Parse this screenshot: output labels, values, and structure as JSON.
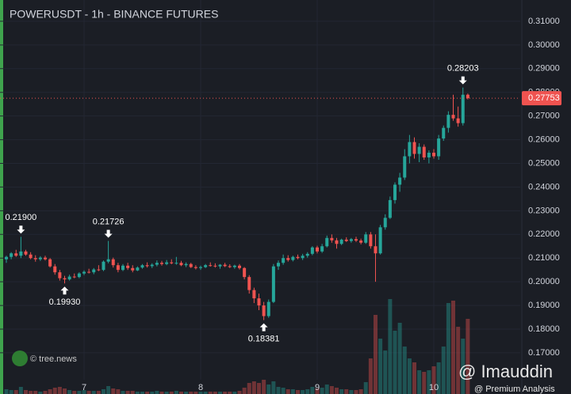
{
  "chart_data": {
    "type": "candlestick",
    "title": "POWERUSDT - 1h - BINANCE FUTURES",
    "up_color": "#26a69a",
    "down_color": "#ef5350",
    "categories": [
      null,
      null,
      null,
      null,
      null,
      null,
      null,
      null,
      null,
      null,
      null,
      null,
      null,
      null,
      null,
      null,
      "7",
      null,
      null,
      null,
      null,
      null,
      null,
      null,
      null,
      null,
      null,
      null,
      null,
      null,
      null,
      null,
      null,
      null,
      null,
      null,
      null,
      null,
      null,
      null,
      "8",
      null,
      null,
      null,
      null,
      null,
      null,
      null,
      null,
      null,
      null,
      null,
      null,
      null,
      null,
      null,
      null,
      null,
      null,
      null,
      null,
      null,
      null,
      null,
      "9",
      null,
      null,
      null,
      null,
      null,
      null,
      null,
      null,
      null,
      null,
      null,
      null,
      null,
      null,
      null,
      null,
      null,
      null,
      null,
      null,
      null,
      null,
      null,
      "10",
      null,
      null,
      null,
      null,
      null,
      null,
      null
    ],
    "candles": [
      [
        0.2095,
        0.211,
        0.208,
        0.2105
      ],
      [
        0.2105,
        0.2125,
        0.2095,
        0.212
      ],
      [
        0.212,
        0.2135,
        0.2105,
        0.211
      ],
      [
        0.211,
        0.219,
        0.21,
        0.2128
      ],
      [
        0.2128,
        0.2135,
        0.211,
        0.2115
      ],
      [
        0.2115,
        0.2125,
        0.2095,
        0.21
      ],
      [
        0.21,
        0.2112,
        0.2085,
        0.2095
      ],
      [
        0.2095,
        0.2108,
        0.2088,
        0.2102
      ],
      [
        0.2102,
        0.211,
        0.209,
        0.2095
      ],
      [
        0.2095,
        0.21,
        0.206,
        0.2065
      ],
      [
        0.2065,
        0.2075,
        0.203,
        0.204
      ],
      [
        0.204,
        0.205,
        0.2005,
        0.2015
      ],
      [
        0.2015,
        0.2025,
        0.1993,
        0.201
      ],
      [
        0.201,
        0.203,
        0.2005,
        0.2022
      ],
      [
        0.2022,
        0.2035,
        0.2015,
        0.202
      ],
      [
        0.202,
        0.204,
        0.2015,
        0.2035
      ],
      [
        0.2035,
        0.2048,
        0.2028,
        0.2042
      ],
      [
        0.2042,
        0.2055,
        0.2035,
        0.204
      ],
      [
        0.204,
        0.2058,
        0.2032,
        0.2052
      ],
      [
        0.2052,
        0.207,
        0.2045,
        0.205
      ],
      [
        0.205,
        0.209,
        0.2045,
        0.2085
      ],
      [
        0.2085,
        0.21726,
        0.2078,
        0.2095
      ],
      [
        0.2095,
        0.2102,
        0.206,
        0.207
      ],
      [
        0.207,
        0.208,
        0.204,
        0.205
      ],
      [
        0.205,
        0.2075,
        0.2045,
        0.2068
      ],
      [
        0.2068,
        0.208,
        0.205,
        0.2058
      ],
      [
        0.2058,
        0.207,
        0.204,
        0.2048
      ],
      [
        0.2048,
        0.2065,
        0.2045,
        0.206
      ],
      [
        0.206,
        0.2075,
        0.2055,
        0.207
      ],
      [
        0.207,
        0.2082,
        0.206,
        0.2066
      ],
      [
        0.2066,
        0.2078,
        0.2058,
        0.2072
      ],
      [
        0.2072,
        0.209,
        0.2065,
        0.208
      ],
      [
        0.208,
        0.2088,
        0.2068,
        0.2075
      ],
      [
        0.2075,
        0.2092,
        0.207,
        0.2082
      ],
      [
        0.2082,
        0.2095,
        0.2074,
        0.2078
      ],
      [
        0.2078,
        0.2105,
        0.2072,
        0.208
      ],
      [
        0.208,
        0.2088,
        0.2066,
        0.207
      ],
      [
        0.207,
        0.2082,
        0.2062,
        0.2075
      ],
      [
        0.2075,
        0.208,
        0.2058,
        0.2062
      ],
      [
        0.2062,
        0.207,
        0.2052,
        0.2058
      ],
      [
        0.2058,
        0.2068,
        0.205,
        0.2062
      ],
      [
        0.2062,
        0.2075,
        0.2058,
        0.207
      ],
      [
        0.207,
        0.2082,
        0.2064,
        0.2068
      ],
      [
        0.2068,
        0.2078,
        0.206,
        0.2065
      ],
      [
        0.2065,
        0.2075,
        0.2055,
        0.2072
      ],
      [
        0.2072,
        0.208,
        0.2062,
        0.2066
      ],
      [
        0.2066,
        0.2074,
        0.2058,
        0.2062
      ],
      [
        0.2062,
        0.2072,
        0.2055,
        0.2068
      ],
      [
        0.2068,
        0.2075,
        0.2052,
        0.2058
      ],
      [
        0.2058,
        0.2062,
        0.201,
        0.202
      ],
      [
        0.202,
        0.2028,
        0.195,
        0.1965
      ],
      [
        0.1965,
        0.1975,
        0.191,
        0.193
      ],
      [
        0.193,
        0.195,
        0.188,
        0.19
      ],
      [
        0.19,
        0.1915,
        0.18381,
        0.1855
      ],
      [
        0.1855,
        0.1925,
        0.1848,
        0.1915
      ],
      [
        0.1915,
        0.2075,
        0.191,
        0.2065
      ],
      [
        0.2065,
        0.209,
        0.205,
        0.208
      ],
      [
        0.208,
        0.2115,
        0.2072,
        0.21
      ],
      [
        0.21,
        0.2112,
        0.2085,
        0.2092
      ],
      [
        0.2092,
        0.211,
        0.2086,
        0.2105
      ],
      [
        0.2105,
        0.2115,
        0.2095,
        0.21
      ],
      [
        0.21,
        0.2118,
        0.2092,
        0.211
      ],
      [
        0.211,
        0.2125,
        0.2102,
        0.2118
      ],
      [
        0.2118,
        0.215,
        0.2112,
        0.2145
      ],
      [
        0.2145,
        0.2152,
        0.212,
        0.2128
      ],
      [
        0.2128,
        0.216,
        0.2122,
        0.215
      ],
      [
        0.215,
        0.2195,
        0.2145,
        0.2185
      ],
      [
        0.2185,
        0.22,
        0.2165,
        0.2175
      ],
      [
        0.2175,
        0.2185,
        0.214,
        0.216
      ],
      [
        0.216,
        0.2182,
        0.2155,
        0.2178
      ],
      [
        0.2178,
        0.2188,
        0.2168,
        0.2172
      ],
      [
        0.2172,
        0.2185,
        0.2165,
        0.218
      ],
      [
        0.218,
        0.219,
        0.2168,
        0.2174
      ],
      [
        0.2174,
        0.2182,
        0.2158,
        0.2165
      ],
      [
        0.2165,
        0.221,
        0.216,
        0.22
      ],
      [
        0.22,
        0.221,
        0.214,
        0.215
      ],
      [
        0.215,
        0.22,
        0.2,
        0.212
      ],
      [
        0.212,
        0.224,
        0.2115,
        0.223
      ],
      [
        0.223,
        0.2285,
        0.222,
        0.227
      ],
      [
        0.227,
        0.236,
        0.2265,
        0.2345
      ],
      [
        0.2345,
        0.242,
        0.233,
        0.241
      ],
      [
        0.241,
        0.246,
        0.238,
        0.244
      ],
      [
        0.244,
        0.256,
        0.243,
        0.253
      ],
      [
        0.253,
        0.262,
        0.25,
        0.259
      ],
      [
        0.259,
        0.261,
        0.252,
        0.254
      ],
      [
        0.254,
        0.2585,
        0.2505,
        0.257
      ],
      [
        0.257,
        0.258,
        0.2515,
        0.2525
      ],
      [
        0.2525,
        0.2555,
        0.25,
        0.2545
      ],
      [
        0.2545,
        0.256,
        0.252,
        0.253
      ],
      [
        0.253,
        0.262,
        0.2515,
        0.2605
      ],
      [
        0.2605,
        0.266,
        0.2595,
        0.265
      ],
      [
        0.265,
        0.272,
        0.263,
        0.2705
      ],
      [
        0.2705,
        0.279,
        0.268,
        0.269
      ],
      [
        0.269,
        0.274,
        0.2655,
        0.267
      ],
      [
        0.267,
        0.28203,
        0.266,
        0.279
      ],
      [
        0.279,
        0.2795,
        0.277,
        0.27753
      ]
    ],
    "volume": [
      6,
      5,
      5,
      9,
      5,
      4,
      4,
      3,
      4,
      6,
      8,
      9,
      7,
      5,
      4,
      4,
      5,
      4,
      4,
      4,
      6,
      10,
      7,
      6,
      4,
      4,
      4,
      3,
      3,
      3,
      3,
      4,
      3,
      3,
      3,
      4,
      3,
      3,
      3,
      3,
      3,
      3,
      3,
      3,
      3,
      3,
      3,
      3,
      4,
      8,
      14,
      16,
      14,
      18,
      12,
      16,
      9,
      8,
      6,
      6,
      5,
      5,
      6,
      9,
      7,
      8,
      12,
      10,
      8,
      6,
      6,
      5,
      5,
      6,
      15,
      45,
      100,
      70,
      55,
      120,
      80,
      90,
      60,
      45,
      40,
      30,
      28,
      30,
      35,
      40,
      60,
      115,
      118,
      85,
      70,
      95
    ],
    "ylim": [
      0.1526,
      0.319
    ],
    "yticks": [
      {
        "value": 0.31,
        "label": "0.31000"
      },
      {
        "value": 0.3,
        "label": "0.30000"
      },
      {
        "value": 0.29,
        "label": "0.29000"
      },
      {
        "value": 0.28,
        "label": "0.28000"
      },
      {
        "value": 0.27,
        "label": "0.27000"
      },
      {
        "value": 0.26,
        "label": "0.26000"
      },
      {
        "value": 0.25,
        "label": "0.25000"
      },
      {
        "value": 0.24,
        "label": "0.24000"
      },
      {
        "value": 0.23,
        "label": "0.23000"
      },
      {
        "value": 0.22,
        "label": "0.22000"
      },
      {
        "value": 0.21,
        "label": "0.21000"
      },
      {
        "value": 0.2,
        "label": "0.20000"
      },
      {
        "value": 0.19,
        "label": "0.19000"
      },
      {
        "value": 0.18,
        "label": "0.18000"
      },
      {
        "value": 0.17,
        "label": "0.17000"
      }
    ],
    "last_price": {
      "value": 0.27753,
      "label": "0.27753"
    },
    "annotations": [
      {
        "value": 0.219,
        "label": "0.21900",
        "side": "above"
      },
      {
        "value": 0.1993,
        "label": "0.19930",
        "side": "below"
      },
      {
        "value": 0.21726,
        "label": "0.21726",
        "side": "above"
      },
      {
        "value": 0.18381,
        "label": "0.18381",
        "side": "below"
      },
      {
        "value": 0.28203,
        "label": "0.28203",
        "side": "above"
      }
    ],
    "watermarks": [
      "© tree.news",
      "@ Imauddin",
      "@ Premium Analysis"
    ]
  }
}
